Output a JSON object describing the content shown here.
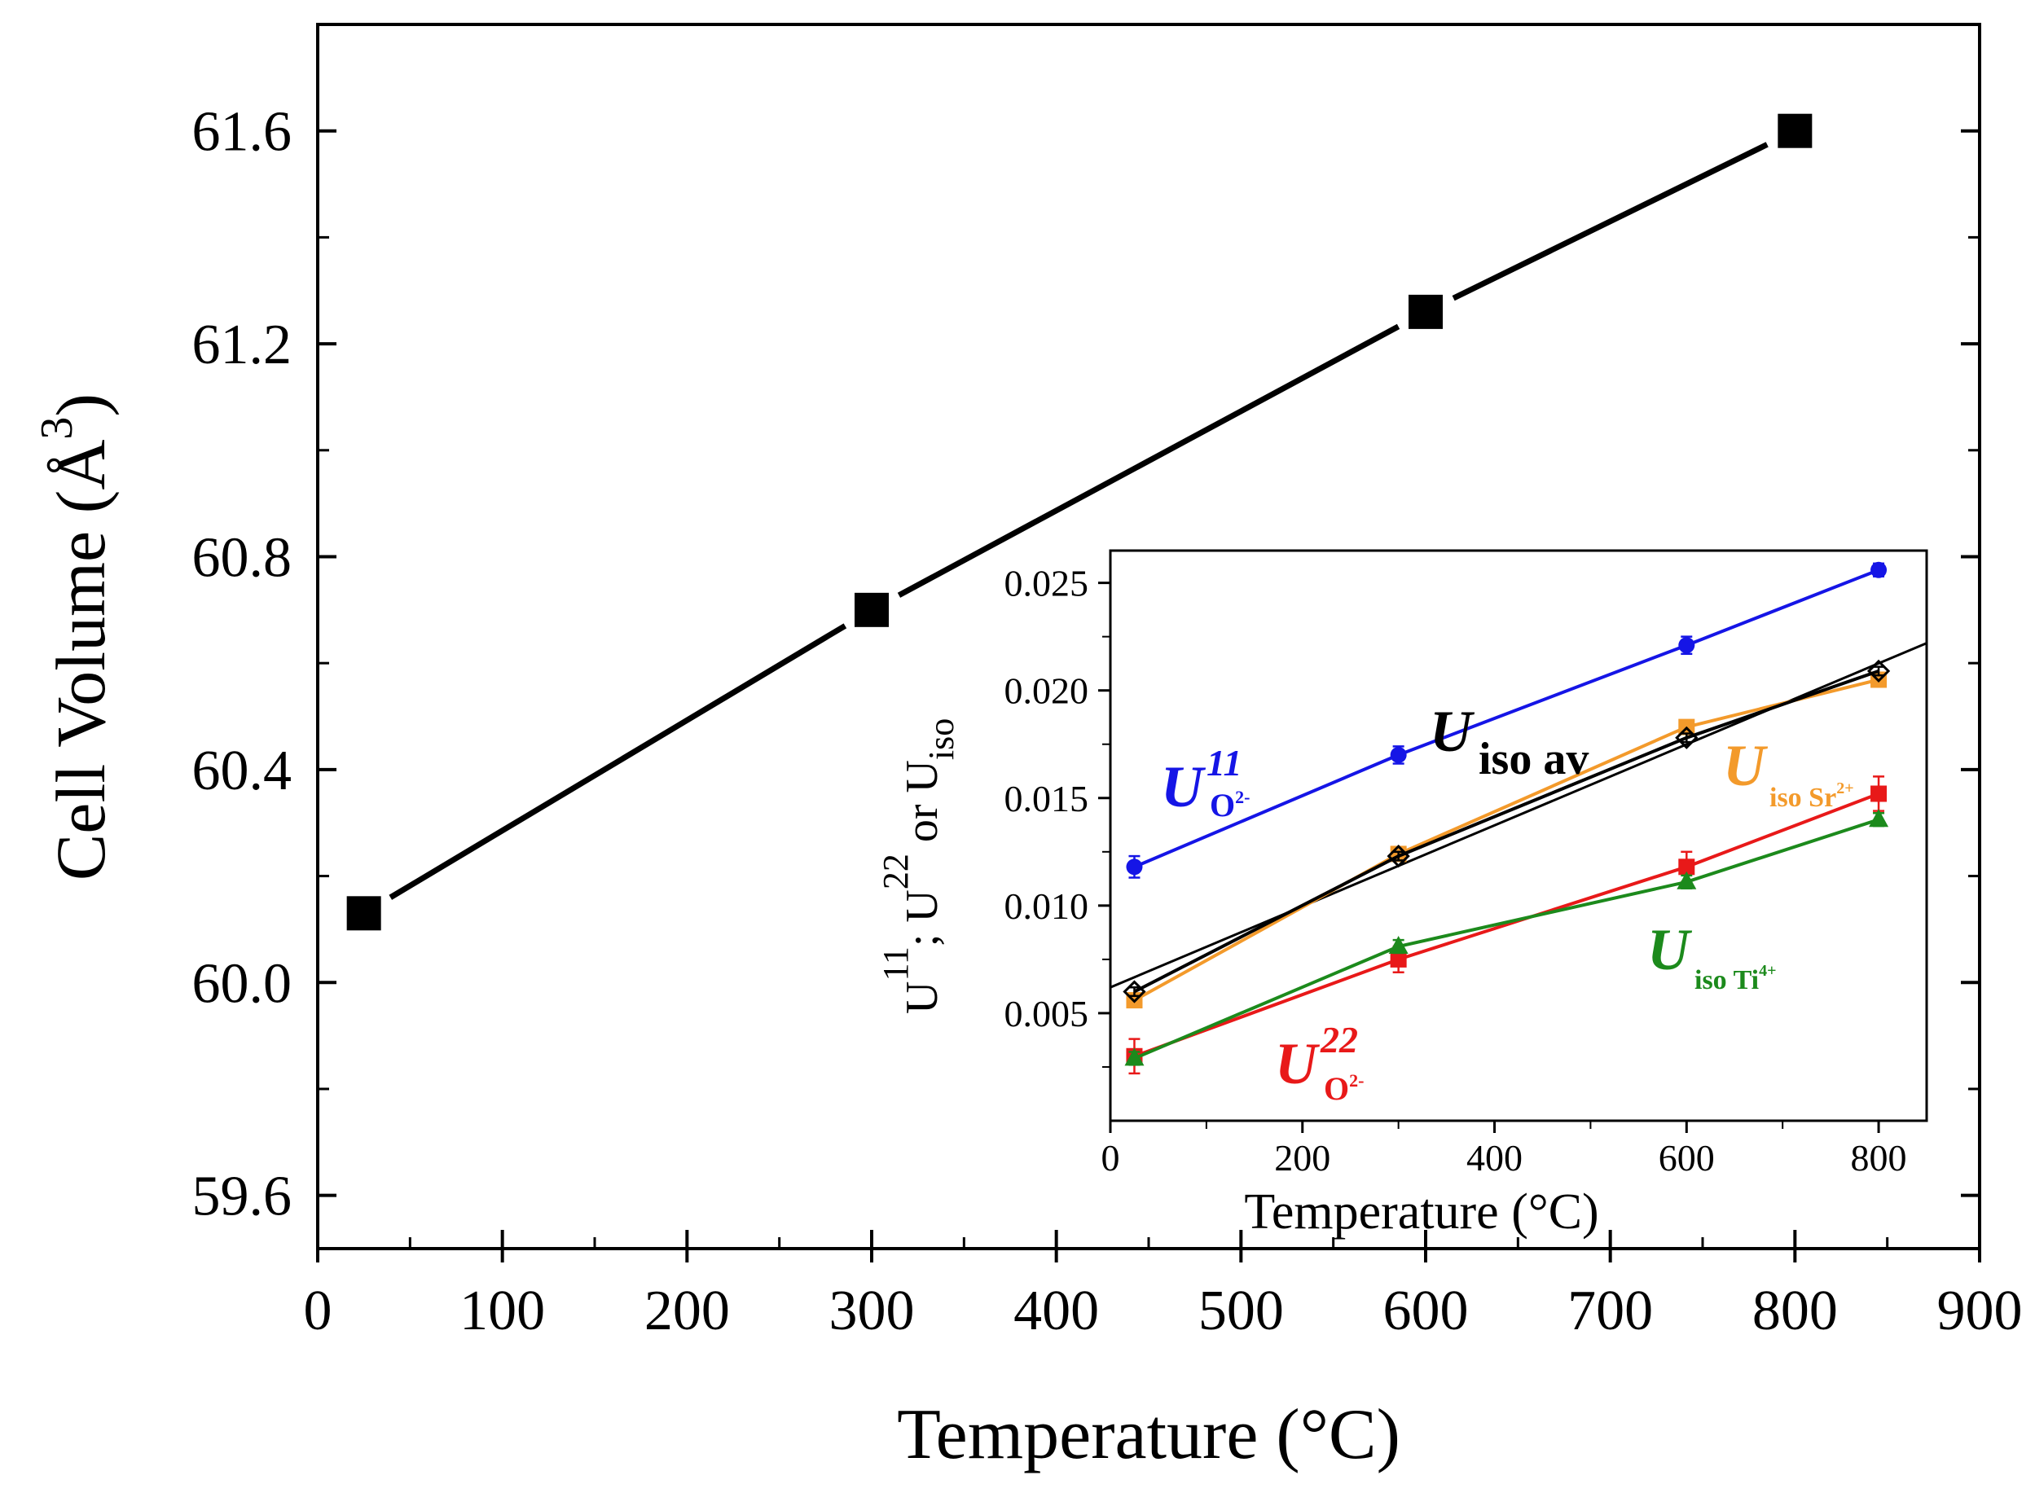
{
  "chart_data": [
    {
      "id": "main",
      "type": "line",
      "xlabel": "Temperature (°C)",
      "ylabel": "Cell Volume (Å",
      "ylabel_sup": "3",
      "ylabel_close": ")",
      "xlim": [
        0,
        900
      ],
      "ylim": [
        59.5,
        61.8
      ],
      "xticks": [
        0,
        100,
        200,
        300,
        400,
        500,
        600,
        700,
        800,
        900
      ],
      "xtick_labels": [
        "0",
        "100",
        "200",
        "300",
        "400",
        "500",
        "600",
        "700",
        "800",
        "900"
      ],
      "yticks": [
        59.6,
        60.0,
        60.4,
        60.8,
        61.2,
        61.6
      ],
      "ytick_labels": [
        "59.6",
        "60.0",
        "60.4",
        "60.8",
        "61.2",
        "61.6"
      ],
      "series": [
        {
          "name": "Cell Volume",
          "color": "#000000",
          "marker": "square",
          "x": [
            25,
            300,
            600,
            800
          ],
          "y": [
            60.13,
            60.7,
            61.26,
            61.6
          ]
        }
      ]
    },
    {
      "id": "inset",
      "type": "line",
      "xlabel": "Temperature (°C)",
      "ylabel_parts": [
        "U",
        "11",
        "; U",
        "22",
        " or U",
        "iso"
      ],
      "xlim": [
        0,
        850
      ],
      "ylim": [
        0.0,
        0.0265
      ],
      "xticks": [
        0,
        200,
        400,
        600,
        800
      ],
      "xtick_labels": [
        "0",
        "200",
        "400",
        "600",
        "800"
      ],
      "yticks": [
        0.005,
        0.01,
        0.015,
        0.02,
        0.025
      ],
      "ytick_labels": [
        "0.005",
        "0.010",
        "0.015",
        "0.020",
        "0.025"
      ],
      "series": [
        {
          "name": "U11 O2-",
          "color": "#1515e6",
          "marker": "circle",
          "x": [
            25,
            300,
            600,
            800
          ],
          "y": [
            0.0118,
            0.017,
            0.0221,
            0.0256
          ],
          "err": [
            0.0005,
            0.0004,
            0.0004,
            0.0003
          ]
        },
        {
          "name": "Uiso Sr2+",
          "color": "#f39a2b",
          "marker": "square",
          "x": [
            25,
            300,
            600,
            800
          ],
          "y": [
            0.0056,
            0.0124,
            0.0183,
            0.0205
          ],
          "err": [
            0.0003,
            0.0003,
            0.0003,
            0.0003
          ]
        },
        {
          "name": "Uiso av",
          "color": "#000000",
          "marker": "diamond-open",
          "x": [
            25,
            300,
            600,
            800
          ],
          "y": [
            0.006,
            0.0123,
            0.0178,
            0.0209
          ],
          "err": [
            0.0002,
            0.0002,
            0.0002,
            0.0002
          ]
        },
        {
          "name": "U22 O2-",
          "color": "#e81919",
          "marker": "square",
          "x": [
            25,
            300,
            600,
            800
          ],
          "y": [
            0.003,
            0.0075,
            0.0118,
            0.0152
          ],
          "err": [
            0.0008,
            0.0006,
            0.0007,
            0.0008
          ]
        },
        {
          "name": "Uiso Ti4+",
          "color": "#1c8a1c",
          "marker": "triangle",
          "x": [
            25,
            300,
            600,
            800
          ],
          "y": [
            0.0029,
            0.0081,
            0.0111,
            0.014
          ],
          "err": [
            0.0003,
            0.0003,
            0.0003,
            0.0003
          ]
        }
      ],
      "fit_line": {
        "name": "Uiso av linear fit",
        "color": "#000000",
        "x": [
          0,
          850
        ],
        "y": [
          0.0062,
          0.0222
        ]
      },
      "annotations": [
        {
          "series": "U11 O2-",
          "main": "U",
          "sup": "11",
          "sub": "O",
          "sub_sup": "2-",
          "color": "#1515e6"
        },
        {
          "series": "Uiso av",
          "main": "U",
          "sub": "iso av",
          "color": "#000000"
        },
        {
          "series": "Uiso Sr2+",
          "main": "U",
          "sub": "iso Sr",
          "sub_sup": "2+",
          "color": "#f39a2b"
        },
        {
          "series": "Uiso Ti4+",
          "main": "U",
          "sub": "iso Ti",
          "sub_sup": "4+",
          "color": "#1c8a1c"
        },
        {
          "series": "U22 O2-",
          "main": "U",
          "sup": "22",
          "sub": "O",
          "sub_sup": "2-",
          "color": "#e81919"
        }
      ]
    }
  ]
}
